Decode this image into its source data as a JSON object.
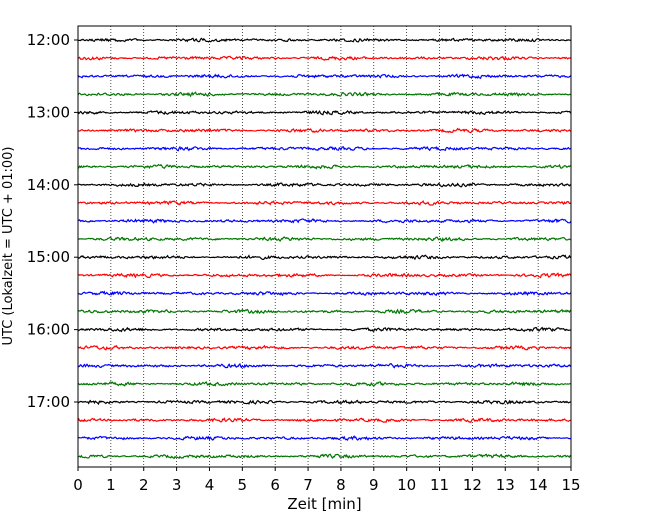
{
  "chart_data": {
    "type": "line",
    "title": "",
    "xlabel": "Zeit  [min]",
    "ylabel": "UTC (Lokalzeit = UTC + 01:00)",
    "xlim": [
      0,
      15
    ],
    "x_ticks": [
      "0",
      "1",
      "2",
      "3",
      "4",
      "5",
      "6",
      "7",
      "8",
      "9",
      "10",
      "11",
      "12",
      "13",
      "14",
      "15"
    ],
    "y_ticks": [
      "12:00",
      "13:00",
      "14:00",
      "15:00",
      "16:00",
      "17:00"
    ],
    "grid_x": true,
    "grid_style": "dotted",
    "row_colors": [
      "#000000",
      "#ff0000",
      "#0000ff",
      "#007700"
    ],
    "rows": [
      {
        "time": "12:00"
      },
      {
        "time": "12:15"
      },
      {
        "time": "12:30"
      },
      {
        "time": "12:45"
      },
      {
        "time": "13:00"
      },
      {
        "time": "13:15"
      },
      {
        "time": "13:30"
      },
      {
        "time": "13:45"
      },
      {
        "time": "14:00"
      },
      {
        "time": "14:15"
      },
      {
        "time": "14:30"
      },
      {
        "time": "14:45"
      },
      {
        "time": "15:00"
      },
      {
        "time": "15:15"
      },
      {
        "time": "15:30"
      },
      {
        "time": "15:45"
      },
      {
        "time": "16:00"
      },
      {
        "time": "16:15"
      },
      {
        "time": "16:30"
      },
      {
        "time": "16:45"
      },
      {
        "time": "17:00"
      },
      {
        "time": "17:15"
      },
      {
        "time": "17:30"
      },
      {
        "time": "17:45"
      }
    ]
  }
}
